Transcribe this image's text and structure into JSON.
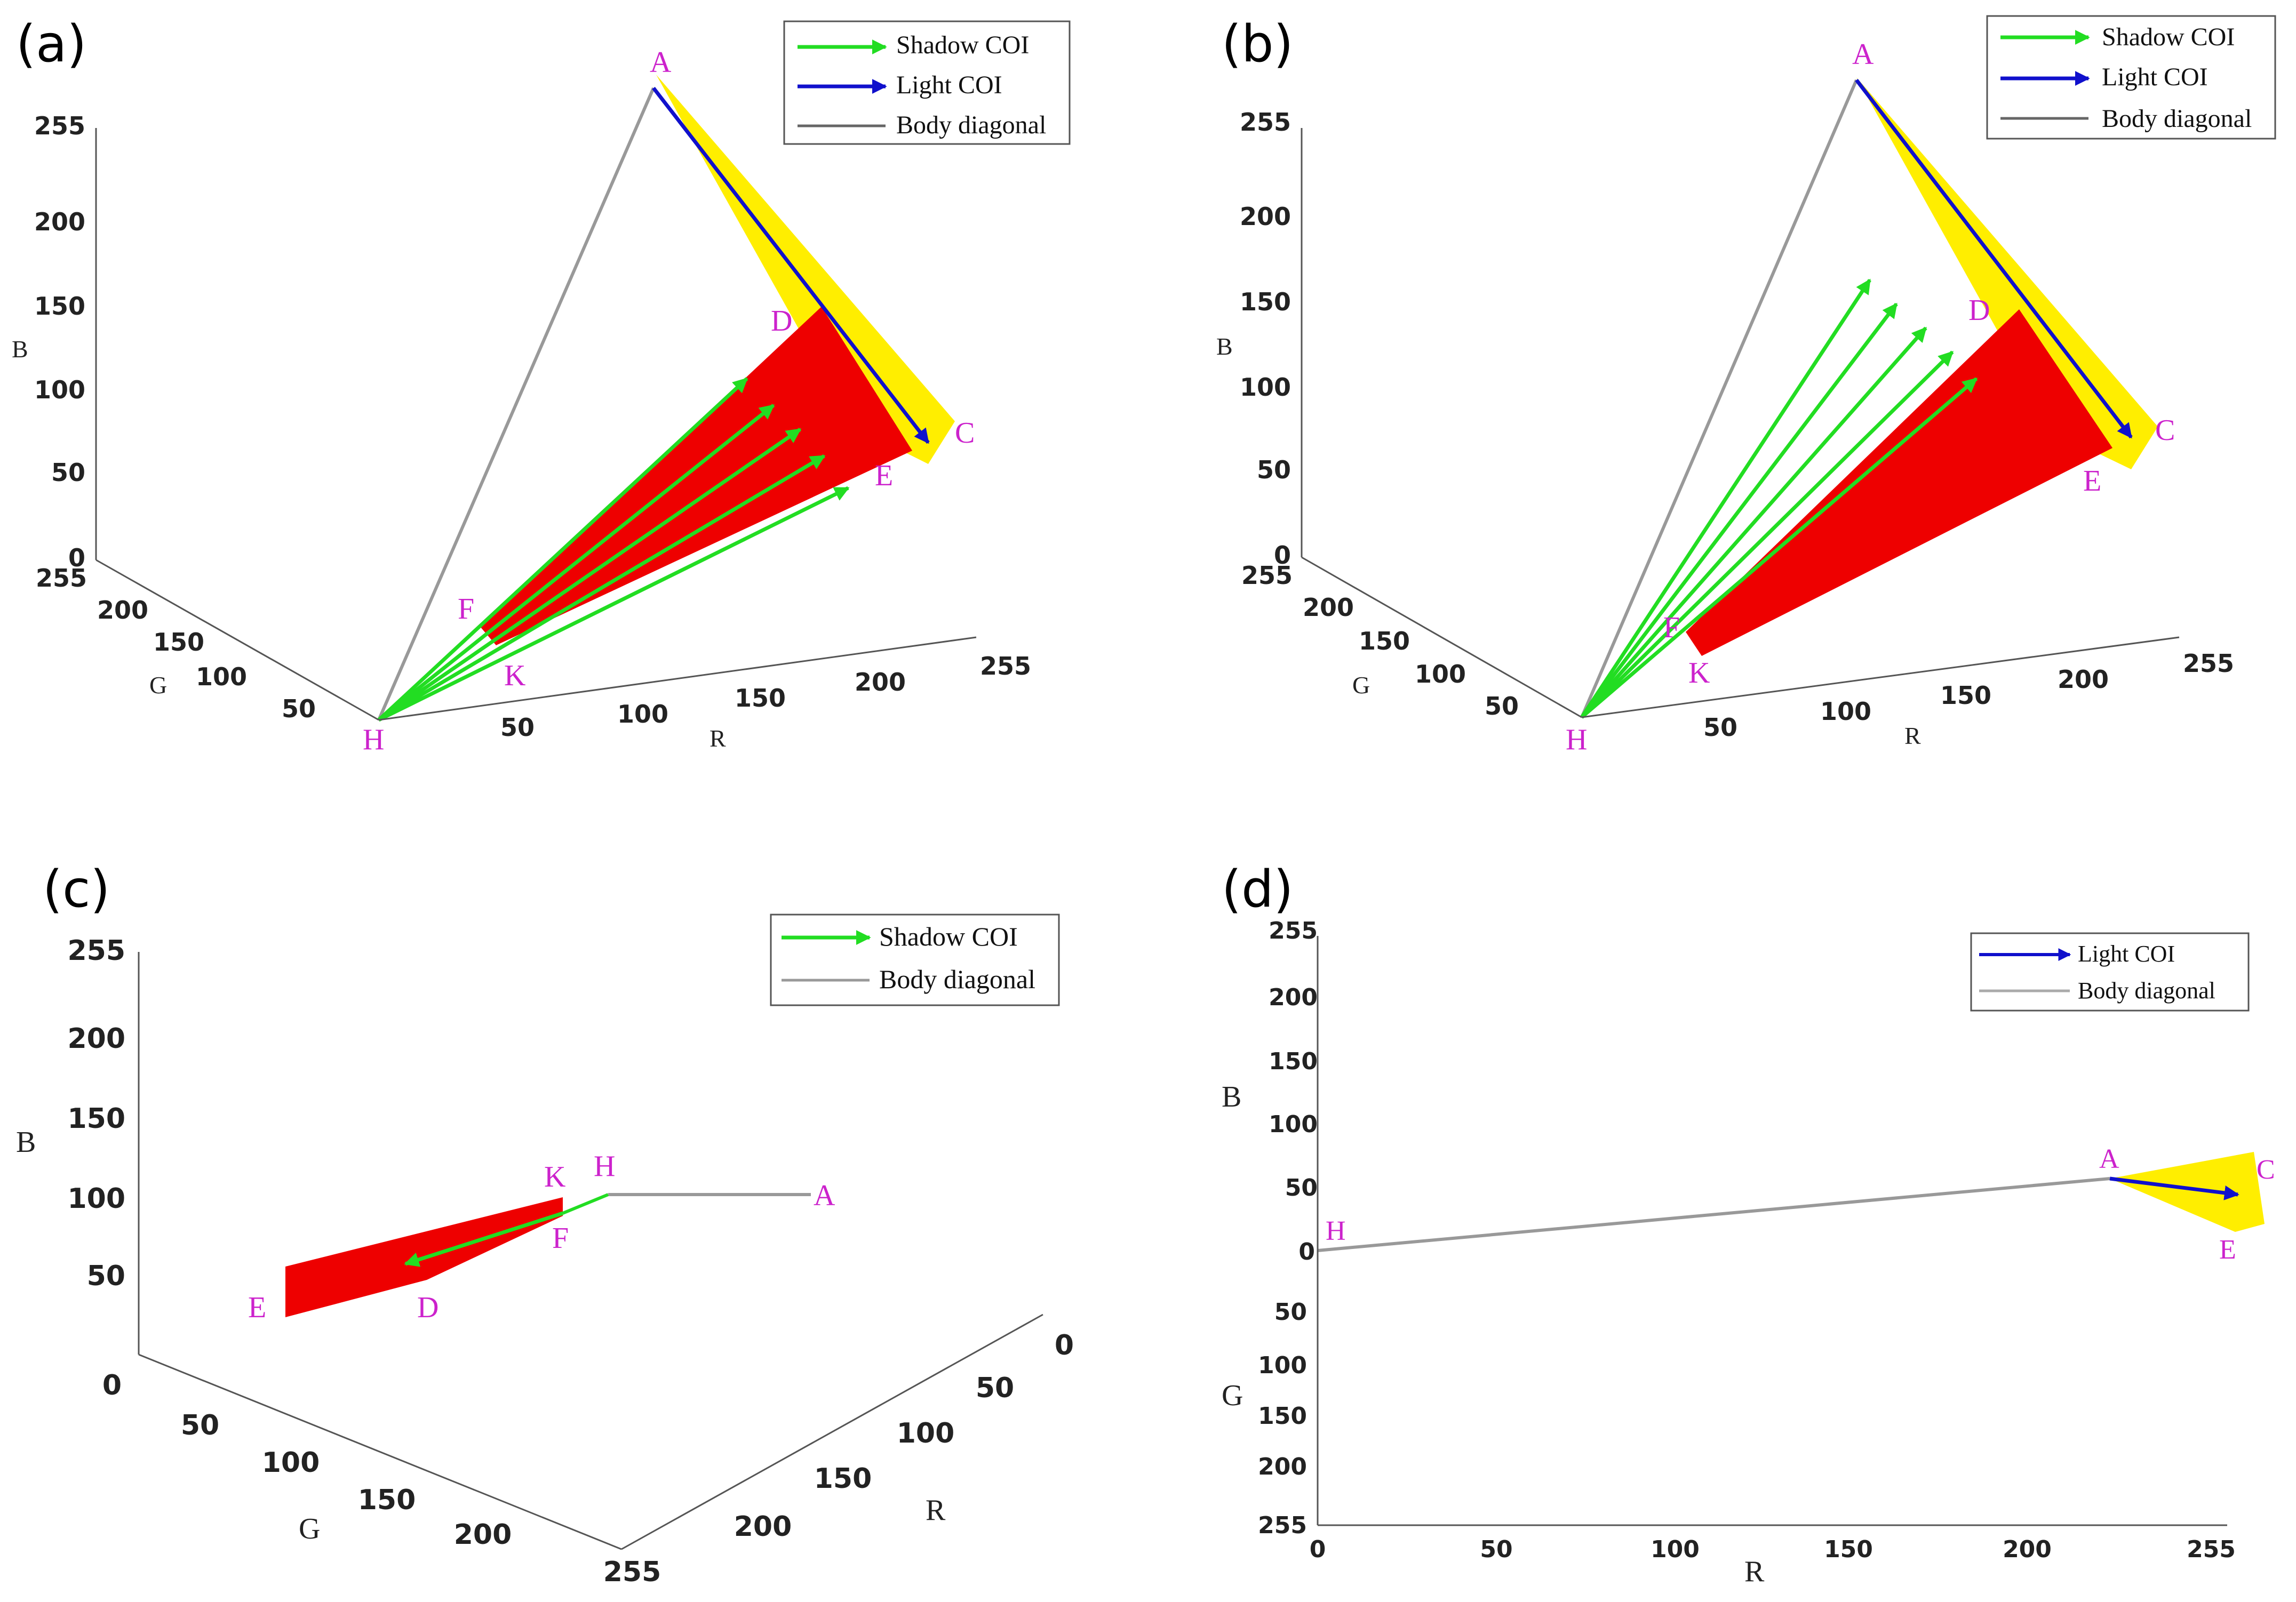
{
  "colors": {
    "shadow_coi": "#22dd22",
    "light_coi": "#1010cc",
    "body_diagonal": "#999999",
    "shadow_region": "#ee0000",
    "light_region": "#ffee00",
    "point_label": "#cc22cc"
  },
  "chart_data": [
    {
      "type": "3d-scatter",
      "panel": "(a)",
      "xlabel": "R",
      "ylabel": "G",
      "zlabel": "B",
      "xlim": [
        0,
        255
      ],
      "ylim": [
        0,
        255
      ],
      "zlim": [
        0,
        255
      ],
      "r_ticks": [
        "50",
        "100",
        "150",
        "200",
        "255"
      ],
      "g_ticks": [
        "50",
        "100",
        "150",
        "200",
        "255"
      ],
      "b_ticks": [
        "0",
        "50",
        "100",
        "150",
        "200",
        "255"
      ],
      "legend": [
        "Shadow COI",
        "Light COI",
        "Body diagonal"
      ],
      "point_labels": [
        "A",
        "C",
        "D",
        "E",
        "F",
        "K",
        "H"
      ],
      "shadow_coi_count": 5
    },
    {
      "type": "3d-scatter",
      "panel": "(b)",
      "xlabel": "R",
      "ylabel": "G",
      "zlabel": "B",
      "xlim": [
        0,
        255
      ],
      "ylim": [
        0,
        255
      ],
      "zlim": [
        0,
        255
      ],
      "r_ticks": [
        "50",
        "100",
        "150",
        "200",
        "255"
      ],
      "g_ticks": [
        "50",
        "100",
        "150",
        "200",
        "255"
      ],
      "b_ticks": [
        "0",
        "50",
        "100",
        "150",
        "200",
        "255"
      ],
      "legend": [
        "Shadow COI",
        "Light COI",
        "Body diagonal"
      ],
      "point_labels": [
        "A",
        "C",
        "D",
        "E",
        "F",
        "K",
        "H"
      ],
      "shadow_coi_count": 5
    },
    {
      "type": "3d-scatter",
      "panel": "(c)",
      "xlabel": "R",
      "ylabel": "G",
      "zlabel": "B",
      "xlim": [
        0,
        255
      ],
      "ylim": [
        0,
        255
      ],
      "zlim": [
        0,
        255
      ],
      "r_ticks": [
        "0",
        "50",
        "100",
        "150",
        "200",
        "255"
      ],
      "g_ticks": [
        "0",
        "50",
        "100",
        "150",
        "200",
        "255"
      ],
      "b_ticks": [
        "50",
        "100",
        "150",
        "200",
        "255"
      ],
      "legend": [
        "Shadow COI",
        "Body diagonal"
      ],
      "point_labels": [
        "K",
        "H",
        "A",
        "F",
        "E",
        "D"
      ]
    },
    {
      "type": "3d-scatter",
      "panel": "(d)",
      "xlabel": "R",
      "ylabel": "G",
      "zlabel": "B",
      "xlim": [
        0,
        255
      ],
      "ylim": [
        0,
        255
      ],
      "zlim": [
        0,
        255
      ],
      "r_ticks": [
        "0",
        "50",
        "100",
        "150",
        "200",
        "255"
      ],
      "g_ticks": [
        "0",
        "50",
        "100",
        "150",
        "200",
        "255"
      ],
      "b_ticks": [
        "0",
        "50",
        "100",
        "150",
        "200",
        "255"
      ],
      "legend": [
        "Light COI",
        "Body diagonal"
      ],
      "point_labels": [
        "A",
        "C",
        "H",
        "E"
      ]
    }
  ]
}
